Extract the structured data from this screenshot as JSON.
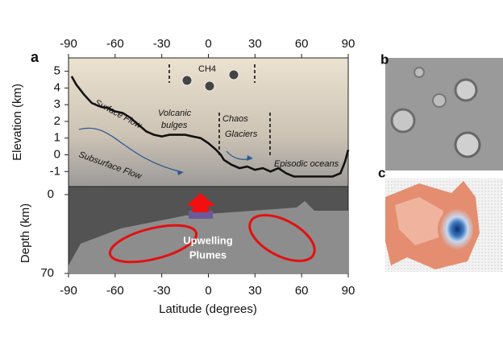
{
  "chart_data": {
    "type": "line",
    "panel_label": "a",
    "x_label": "Latitude (degrees)",
    "y_label": "Elevation (km)",
    "depth_label": "Depth (km)",
    "x": [
      -88,
      -85,
      -80,
      -75,
      -70,
      -65,
      -60,
      -55,
      -50,
      -45,
      -40,
      -35,
      -30,
      -25,
      -20,
      -15,
      -10,
      -5,
      0,
      5,
      8,
      10,
      15,
      20,
      25,
      30,
      35,
      40,
      45,
      50,
      55,
      60,
      70,
      80,
      85,
      88,
      90
    ],
    "values": [
      4.7,
      4.2,
      3.6,
      3.1,
      2.9,
      2.8,
      2.6,
      2.5,
      2.2,
      1.8,
      1.4,
      1.2,
      1.1,
      1.2,
      1.2,
      1.2,
      1.1,
      1.0,
      0.7,
      0.3,
      0.0,
      -0.3,
      -0.6,
      -0.8,
      -0.7,
      -0.9,
      -0.8,
      -1.0,
      -0.8,
      -1.1,
      -1.3,
      -1.3,
      -1.3,
      -1.3,
      -1.1,
      -0.4,
      0.3
    ],
    "color": "#111111",
    "xlim": [
      -90,
      90
    ],
    "xticks": [
      -90,
      -60,
      -30,
      0,
      30,
      60,
      90
    ],
    "ylim": [
      -1.9,
      5.8
    ],
    "yticks": [
      -1,
      0,
      1,
      2,
      3,
      4,
      5
    ],
    "depth_lim": [
      0,
      70
    ],
    "depth_ticks": [
      0,
      70
    ],
    "annotations": [
      "CH4",
      "Surface Flow",
      "Volcanic",
      "bulges",
      "Chaos",
      "Glaciers",
      "Subsurface Flow",
      "Episodic oceans",
      "Upwelling",
      "Plumes"
    ],
    "side_panels": [
      "b",
      "c"
    ]
  }
}
